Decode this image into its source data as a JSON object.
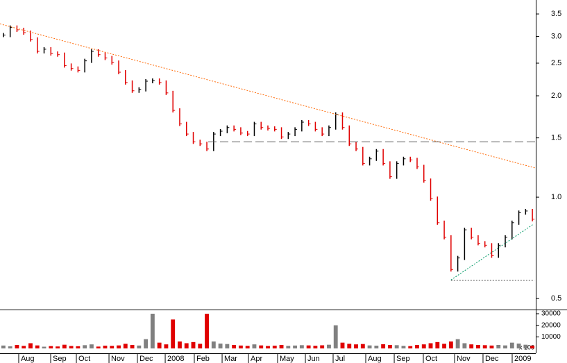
{
  "chart_data": {
    "type": "price-bars",
    "log_scale": true,
    "xlim": [
      0,
      79
    ],
    "xticks": [
      {
        "value": 2.76,
        "label": "Aug"
      },
      {
        "value": 7.47,
        "label": "Sep"
      },
      {
        "value": 11.26,
        "label": "Oct"
      },
      {
        "value": 16.07,
        "label": "Nov"
      },
      {
        "value": 20.26,
        "label": "Dec"
      },
      {
        "value": 24.36,
        "label": "2008"
      },
      {
        "value": 28.65,
        "label": "Feb"
      },
      {
        "value": 32.75,
        "label": "Mar"
      },
      {
        "value": 36.64,
        "label": "Apr"
      },
      {
        "value": 40.93,
        "label": "May"
      },
      {
        "value": 45.03,
        "label": "Jun"
      },
      {
        "value": 49.12,
        "label": "Jul"
      },
      {
        "value": 53.93,
        "label": "Aug"
      },
      {
        "value": 58.13,
        "label": "Sep"
      },
      {
        "value": 62.42,
        "label": "Oct"
      },
      {
        "value": 67.03,
        "label": "Nov"
      },
      {
        "value": 71.22,
        "label": "Dec"
      },
      {
        "value": 75.52,
        "label": "2009"
      }
    ],
    "ylim": [
      0.466,
      3.85
    ],
    "yticks": [
      0.5,
      {
        "value": 1,
        "label": "1.0"
      },
      1.5,
      {
        "value": 2,
        "label": "2.0"
      },
      2.5,
      {
        "value": 3,
        "label": "3.0"
      },
      3.5
    ],
    "up_color": "#000000",
    "down_color": "#e00000",
    "series": [
      {
        "values": [
          3.03,
          3.19,
          3.14,
          3.08,
          2.94,
          2.71,
          2.75,
          2.67,
          2.65,
          2.46,
          2.41,
          2.38,
          2.54,
          2.71,
          2.65,
          2.59,
          2.51,
          2.35,
          2.19,
          2.07,
          2.09,
          2.21,
          2.22,
          2.19,
          2.04,
          1.81,
          1.65,
          1.54,
          1.46,
          1.44,
          1.39,
          1.54,
          1.57,
          1.61,
          1.59,
          1.55,
          1.54,
          1.65,
          1.61,
          1.6,
          1.59,
          1.51,
          1.54,
          1.59,
          1.67,
          1.65,
          1.59,
          1.54,
          1.61,
          1.76,
          1.61,
          1.44,
          1.39,
          1.26,
          1.3,
          1.37,
          1.26,
          1.15,
          1.26,
          1.3,
          1.29,
          1.23,
          1.12,
          0.99,
          0.84,
          0.76,
          0.61,
          0.66,
          0.8,
          0.76,
          0.73,
          0.72,
          0.67,
          0.72,
          0.76,
          0.84,
          0.9,
          0.91,
          0.86
        ]
      }
    ],
    "trendlines": [
      {
        "x": [
          0,
          79
        ],
        "y": [
          3.27,
          1.22
        ],
        "color": "#ff6600",
        "style": "dotted"
      },
      {
        "x": [
          30.7,
          79
        ],
        "y": [
          1.46,
          1.46
        ],
        "color": "#555555",
        "style": "dashed"
      },
      {
        "x": [
          66.5,
          78.6
        ],
        "y": [
          0.568,
          0.83
        ],
        "color": "#009966",
        "style": "dotted"
      },
      {
        "x": [
          66.5,
          78.8
        ],
        "y": [
          0.566,
          0.566
        ],
        "color": "#555555",
        "style": "dotted"
      }
    ],
    "volume": {
      "ylim": [
        0,
        33000
      ],
      "yticks": [
        10000,
        20000,
        30000
      ],
      "unit_label": "x 100",
      "up_color": "#808080",
      "down_color": "#e00000",
      "values": [
        2500,
        1800,
        3000,
        2200,
        4500,
        2600,
        1500,
        2000,
        1700,
        3200,
        2100,
        1900,
        2800,
        3500,
        1600,
        2400,
        2200,
        2600,
        4000,
        3000,
        2500,
        8000,
        30000,
        5000,
        3500,
        25000,
        6000,
        4500,
        5500,
        4000,
        30000,
        6000,
        4200,
        3800,
        3000,
        2500,
        2200,
        3500,
        2600,
        2100,
        2400,
        3000,
        2200,
        2500,
        2800,
        2600,
        2300,
        2700,
        3200,
        20000,
        5000,
        4000,
        3500,
        3800,
        2600,
        2400,
        3600,
        3000,
        2800,
        2200,
        2000,
        3000,
        3500,
        4500,
        5500,
        4000,
        6000,
        8000,
        4500,
        3500,
        3000,
        2800,
        2500,
        3000,
        2600,
        5000,
        4200,
        3200,
        2400
      ]
    }
  }
}
